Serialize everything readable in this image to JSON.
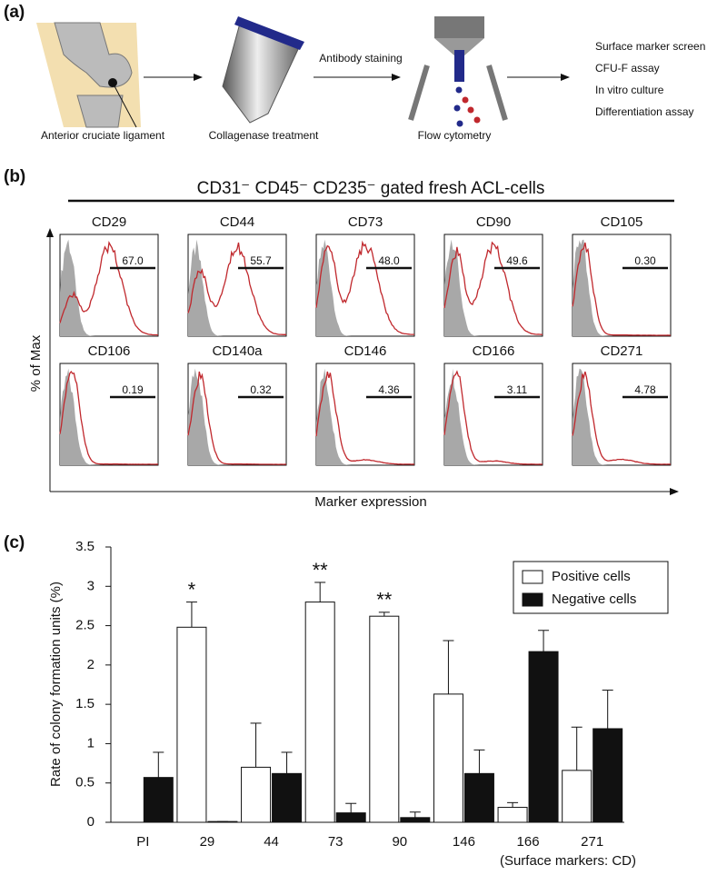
{
  "panel_labels": [
    "(a)",
    "(b)",
    "(c)"
  ],
  "diagram": {
    "steps": [
      {
        "label": "Anterior cruciate ligament"
      },
      {
        "label": "Collagenase treatment"
      },
      {
        "label": "Flow cytometry"
      }
    ],
    "arrow_label": "Antibody staining",
    "outcomes": [
      "Surface marker screen",
      "CFU-F assay",
      "In vitro culture",
      "Differentiation assay"
    ]
  },
  "chart_data": [
    {
      "type": "histogram-panels",
      "title": "CD31⁻ CD45⁻ CD235⁻ gated fresh ACL-cells",
      "ylabel": "% of Max",
      "xlabel": "Marker expression",
      "categories": [
        "CD29",
        "CD44",
        "CD73",
        "CD90",
        "CD105",
        "CD106",
        "CD140a",
        "CD146",
        "CD166",
        "CD271"
      ],
      "values": [
        67.0,
        55.7,
        48.0,
        49.6,
        0.3,
        0.19,
        0.32,
        4.36,
        3.11,
        4.78
      ],
      "value_labels": [
        "67.0",
        "55.7",
        "48.0",
        "49.6",
        "0.30",
        "0.19",
        "0.32",
        "4.36",
        "3.11",
        "4.78"
      ],
      "color": "#c0282d",
      "reference_color": "#a8a8a8"
    },
    {
      "type": "bar",
      "ylabel": "Rate of colony formation units (%)",
      "xlabel": "(Surface markers: CD)",
      "categories": [
        "PI",
        "29",
        "44",
        "73",
        "90",
        "146",
        "166",
        "271"
      ],
      "series": [
        {
          "name": "Positive cells",
          "color": "#ffffff",
          "values": [
            null,
            2.48,
            0.7,
            2.8,
            2.62,
            1.63,
            0.19,
            0.66
          ],
          "errors": [
            null,
            0.32,
            0.56,
            0.25,
            0.05,
            0.68,
            0.06,
            0.55
          ]
        },
        {
          "name": "Negative cells",
          "color": "#111111",
          "values": [
            0.57,
            0.01,
            0.62,
            0.12,
            0.06,
            0.62,
            2.17,
            1.19
          ],
          "errors": [
            0.32,
            0,
            0.27,
            0.12,
            0.07,
            0.3,
            0.27,
            0.49
          ]
        }
      ],
      "significance": [
        null,
        "*",
        null,
        "**",
        "**",
        null,
        null,
        null
      ],
      "ylim": [
        0,
        3.5
      ],
      "yticks": [
        0,
        0.5,
        1,
        1.5,
        2,
        2.5,
        3,
        3.5
      ],
      "legend": "upper right"
    }
  ]
}
